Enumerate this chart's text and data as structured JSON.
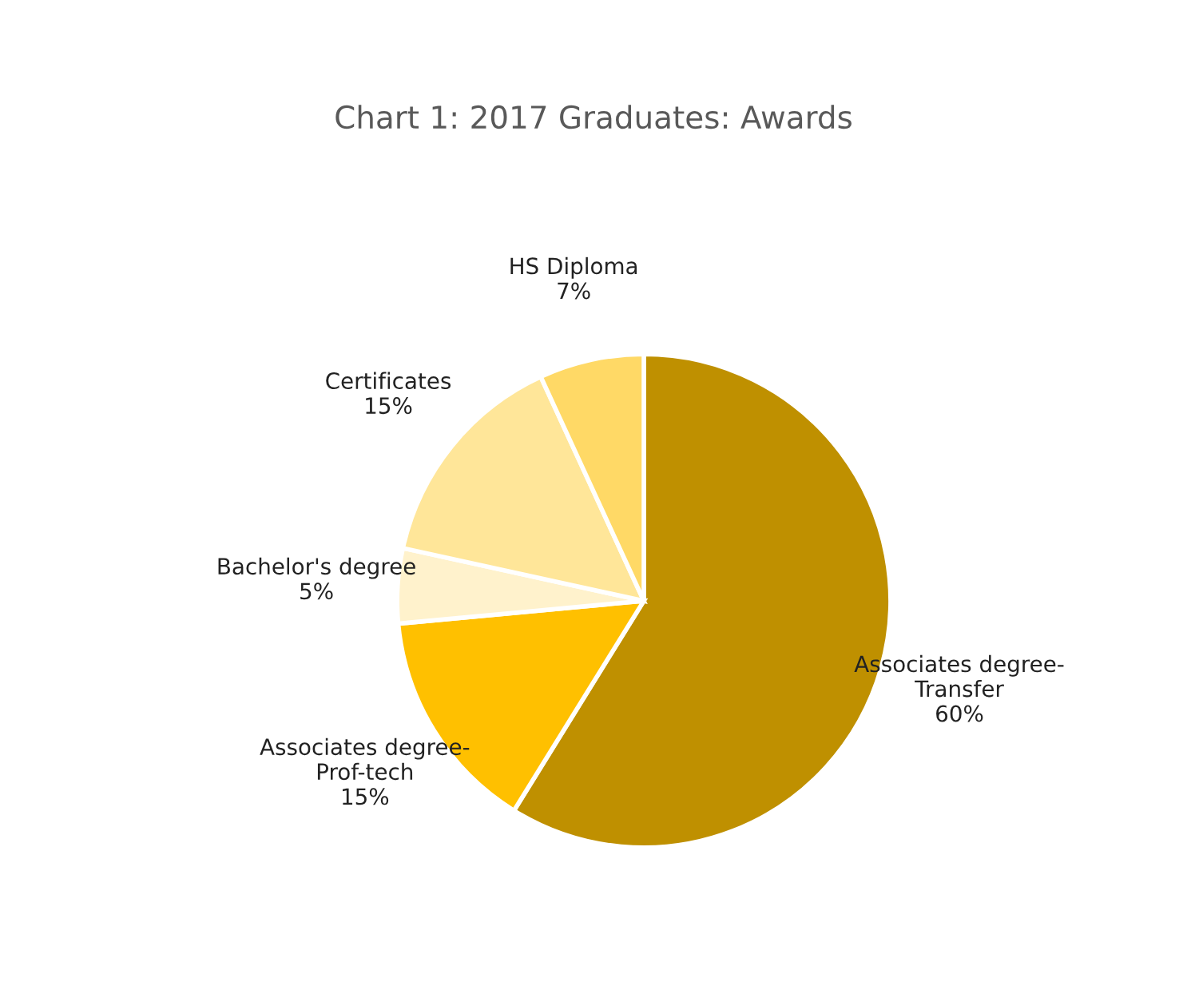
{
  "chart_data": {
    "type": "pie",
    "title": "Chart 1: 2017 Graduates: Awards",
    "categories": [
      "Associates degree-\nTransfer",
      "Associates degree-\nProf-tech",
      "Bachelor's degree",
      "Certificates",
      "HS Diploma"
    ],
    "values": [
      60,
      15,
      5,
      15,
      7
    ],
    "value_labels": [
      "60%",
      "15%",
      "5%",
      "15%",
      "7%"
    ],
    "colors": [
      "#bf9000",
      "#ffc000",
      "#fff2cc",
      "#ffe699",
      "#ffd966"
    ],
    "legend": false
  }
}
